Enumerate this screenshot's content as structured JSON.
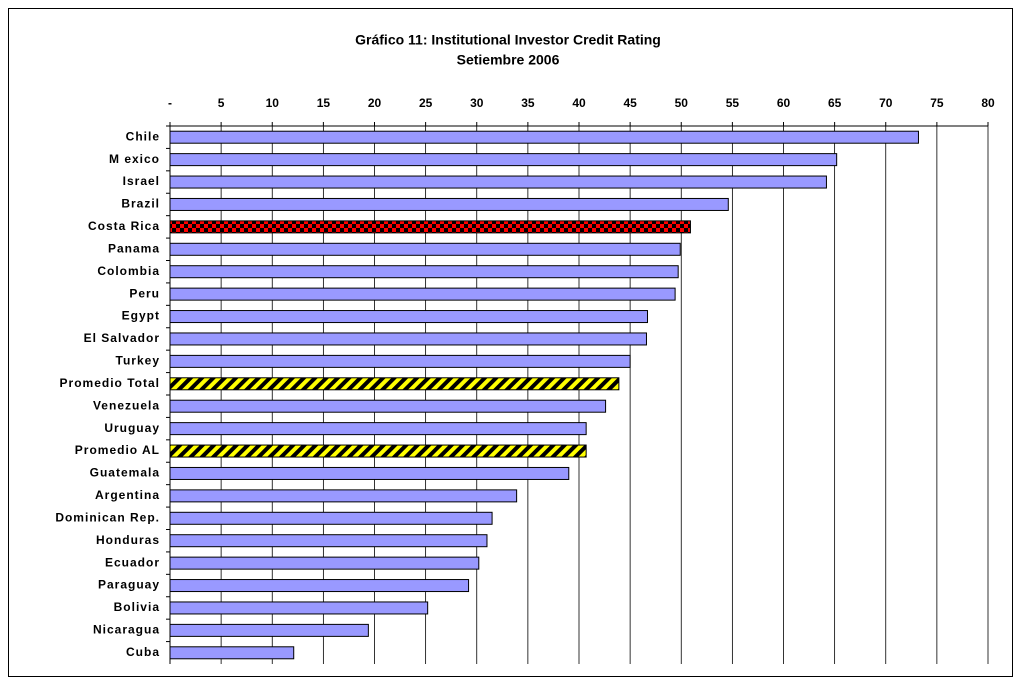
{
  "chart_data": {
    "type": "hbar",
    "title": "Gráfico 11: Institutional Investor Credit Rating",
    "subtitle": "Setiembre 2006",
    "categories": [
      "Chile",
      "M exico",
      "Israel",
      "Brazil",
      "Costa Rica",
      "Panama",
      "Colombia",
      "Peru",
      "Egypt",
      "El Salvador",
      "Turkey",
      "Promedio Total",
      "Venezuela",
      "Uruguay",
      "Promedio AL",
      "Guatemala",
      "Argentina",
      "Dominican Rep.",
      "Honduras",
      "Ecuador",
      "Paraguay",
      "Bolivia",
      "Nicaragua",
      "Cuba"
    ],
    "values": [
      73.2,
      65.2,
      64.2,
      54.6,
      50.9,
      49.9,
      49.7,
      49.4,
      46.7,
      46.6,
      45.0,
      43.9,
      42.6,
      40.7,
      40.7,
      39.0,
      33.9,
      31.5,
      31.0,
      30.2,
      29.2,
      25.2,
      19.4,
      12.1
    ],
    "color": "#9999ff",
    "colors": [
      "#9999ff",
      "#9999ff",
      "#9999ff",
      "#9999ff",
      "#ff0000",
      "#9999ff",
      "#9999ff",
      "#9999ff",
      "#9999ff",
      "#9999ff",
      "#9999ff",
      "#ffff00",
      "#9999ff",
      "#9999ff",
      "#ffff00",
      "#9999ff",
      "#9999ff",
      "#9999ff",
      "#9999ff",
      "#9999ff",
      "#9999ff",
      "#9999ff",
      "#9999ff",
      "#9999ff"
    ],
    "xlim": [
      0,
      80
    ],
    "xticks": [
      {
        "value": 0,
        "label": "-"
      },
      5,
      10,
      15,
      20,
      25,
      30,
      35,
      40,
      45,
      50,
      55,
      60,
      65,
      70,
      75,
      80
    ],
    "grid": true
  }
}
